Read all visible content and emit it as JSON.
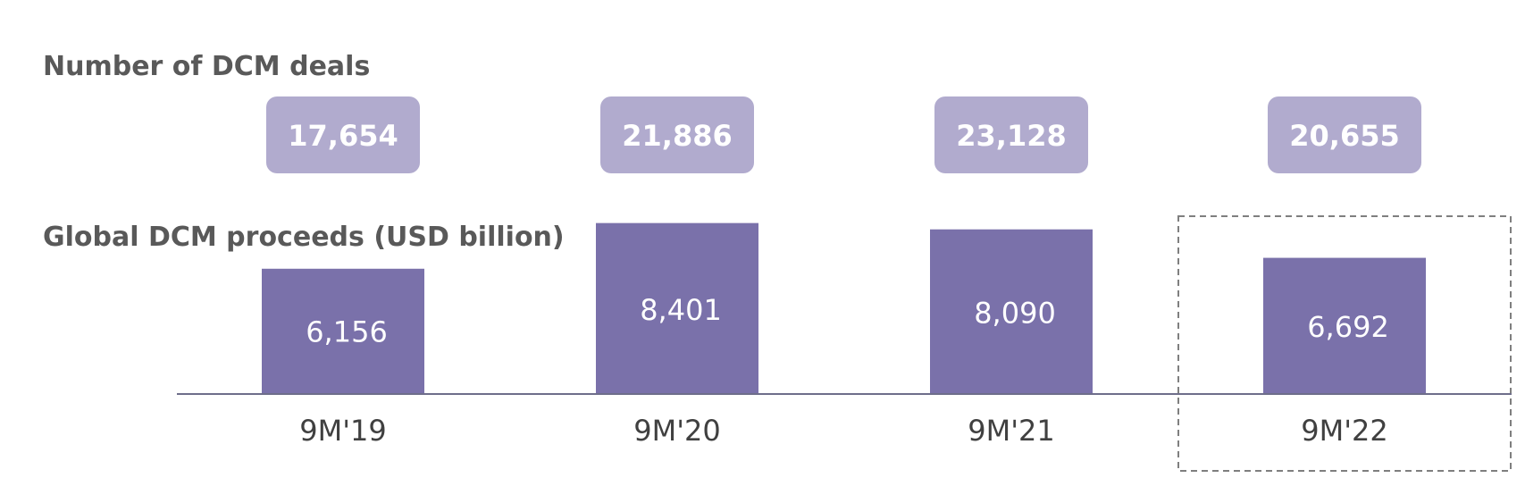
{
  "chart_data": {
    "type": "bar",
    "categories": [
      "9M'19",
      "9M'20",
      "9M'21",
      "9M'22"
    ],
    "deals_title": "Number of DCM deals",
    "deals": [
      "17,654",
      "21,886",
      "23,128",
      "20,655"
    ],
    "title": "Global DCM proceeds (USD billion)",
    "values": [
      6156,
      8401,
      8090,
      6692
    ],
    "value_labels": [
      "6,156",
      "8,401",
      "8,090",
      "6,692"
    ],
    "highlighted_category": "9M'22",
    "ylim": [
      0,
      9000
    ],
    "grid": false,
    "legend": "none",
    "colors": {
      "bar": "#7a71aa",
      "deal_box": "#b1abce",
      "axis": "#6e6e8a",
      "highlight_border": "#7f7f7f"
    }
  }
}
